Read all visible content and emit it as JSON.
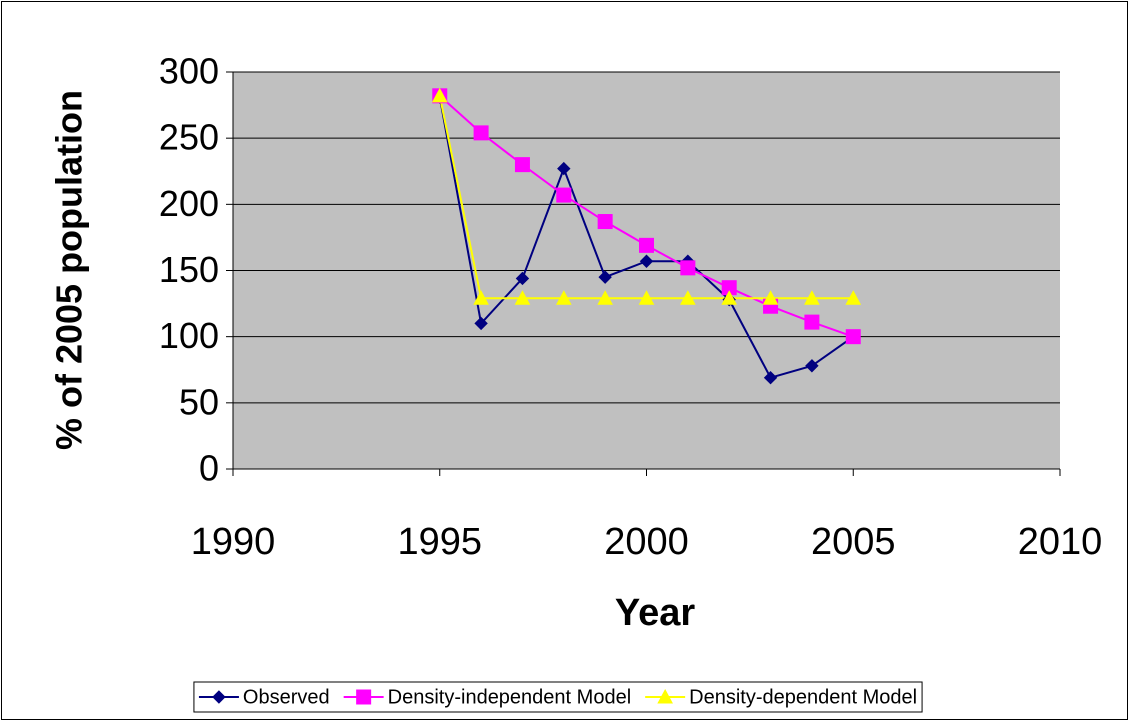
{
  "chart_data": {
    "type": "line",
    "x_label": "Year",
    "y_label": "% of 2005 population",
    "x": [
      1995,
      1996,
      1997,
      1998,
      1999,
      2000,
      2001,
      2002,
      2003,
      2004,
      2005
    ],
    "series": [
      {
        "name": "Observed",
        "color": "#000080",
        "marker": "diamond",
        "values": [
          281,
          110,
          144,
          227,
          145,
          157,
          157,
          128,
          69,
          78,
          100
        ]
      },
      {
        "name": "Density-independent Model",
        "color": "#FF00FF",
        "marker": "square",
        "values": [
          282,
          254,
          230,
          207,
          187,
          169,
          152,
          137,
          123,
          111,
          100
        ]
      },
      {
        "name": "Density-dependent Model",
        "color": "#FFFF00",
        "marker": "triangle",
        "values": [
          282,
          129,
          129,
          129,
          129,
          129,
          129,
          129,
          129,
          129,
          129
        ]
      }
    ],
    "xlim": [
      1990,
      2010
    ],
    "xticks": [
      1990,
      1995,
      2000,
      2005,
      2010
    ],
    "ylim": [
      0,
      300
    ],
    "yticks": [
      0,
      50,
      100,
      150,
      200,
      250,
      300
    ],
    "grid": true,
    "legend": "bottom"
  }
}
